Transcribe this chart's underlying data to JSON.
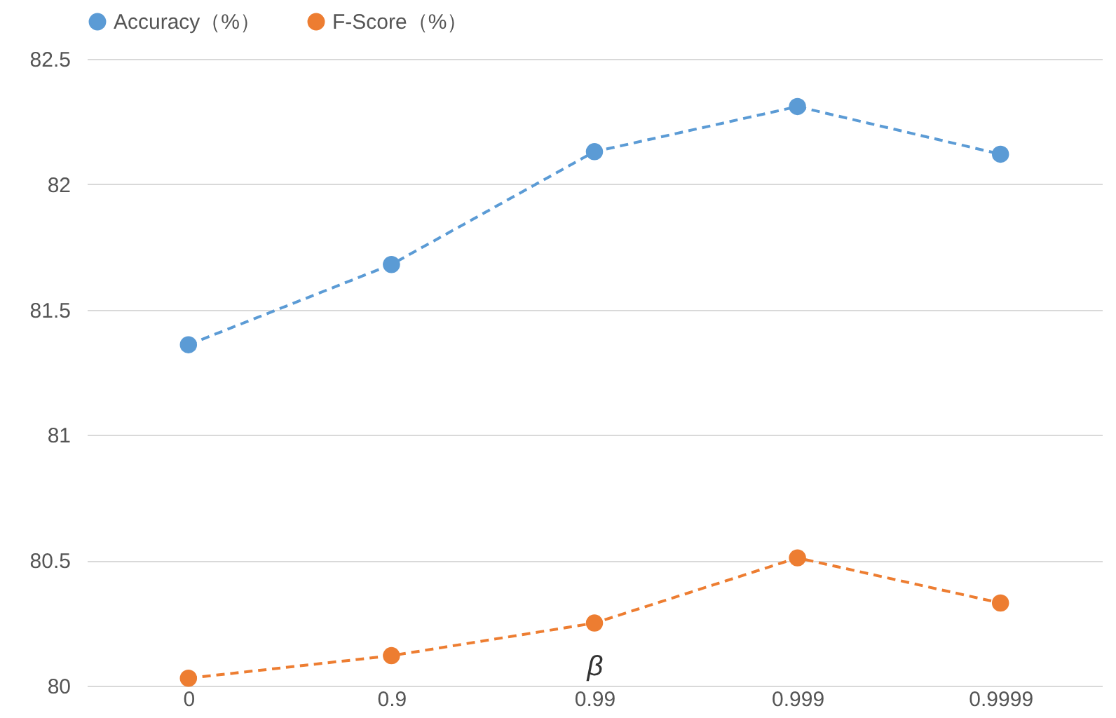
{
  "chart_data": {
    "type": "line",
    "xlabel": "β",
    "categories": [
      "0",
      "0.9",
      "0.99",
      "0.999",
      "0.9999"
    ],
    "series": [
      {
        "name": "Accuracy（%）",
        "color": "#5b9bd5",
        "values": [
          81.36,
          81.68,
          82.13,
          82.31,
          82.12
        ]
      },
      {
        "name": "F-Score（%）",
        "color": "#ed7d31",
        "values": [
          80.03,
          80.12,
          80.25,
          80.51,
          80.33
        ]
      }
    ],
    "ylim": [
      80,
      82.5
    ],
    "yticks": [
      80,
      80.5,
      81,
      81.5,
      82,
      82.5
    ],
    "grid": "y",
    "legend": "top",
    "marker": "circle",
    "line_style": "dashed"
  }
}
